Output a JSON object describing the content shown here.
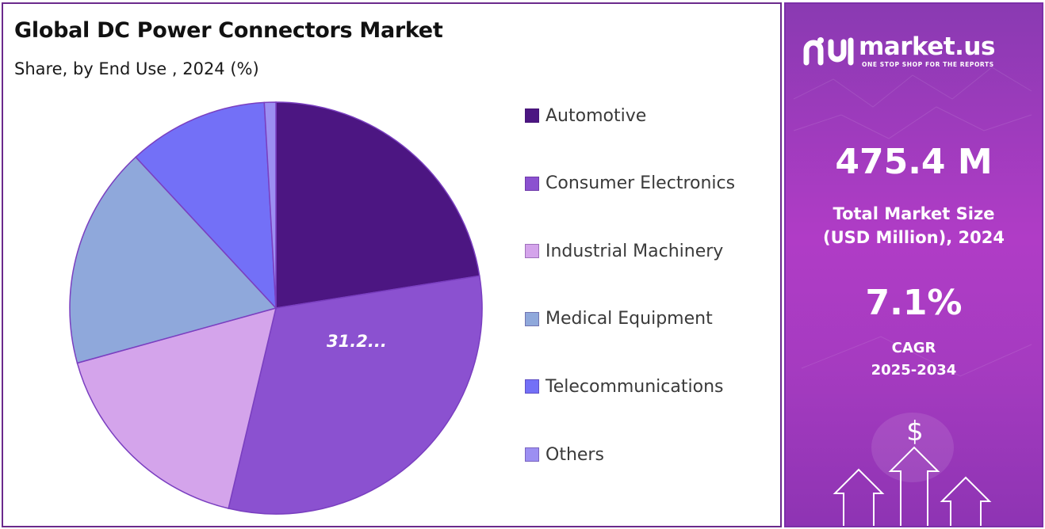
{
  "chart_data": {
    "type": "pie",
    "title": "Global DC Power Connectors Market",
    "subtitle": "Share, by End Use , 2024 (%)",
    "categories": [
      "Automotive",
      "Consumer Electronics",
      "Industrial Machinery",
      "Medical Equipment",
      "Telecommunications",
      "Others"
    ],
    "values": [
      22.5,
      31.2,
      17.0,
      17.4,
      11.0,
      0.9
    ],
    "colors": [
      "#4c1682",
      "#8b51d0",
      "#d4a4eb",
      "#8fa8db",
      "#7370f7",
      "#9c8ff2"
    ],
    "data_labels": [
      {
        "category": "Consumer Electronics",
        "text": "31.2..."
      }
    ],
    "legend_position": "right"
  },
  "sidebar": {
    "brand_name": "market.us",
    "brand_tagline": "ONE STOP SHOP FOR THE REPORTS",
    "market_size_value": "475.4 M",
    "market_size_label_line1": "Total Market Size",
    "market_size_label_line2": "(USD Million), 2024",
    "cagr_value": "7.1%",
    "cagr_label_line1": "CAGR",
    "cagr_label_line2": "2025-2034",
    "decor_icon_symbol": "$",
    "decor_icons": [
      "dollar-coin-icon",
      "up-arrow-icon"
    ]
  }
}
